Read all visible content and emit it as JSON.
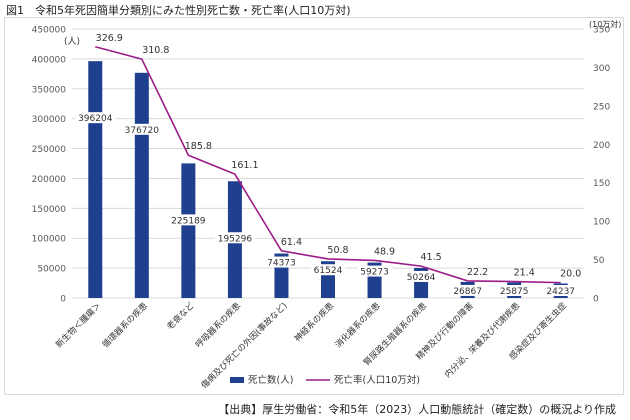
{
  "figure_title": "図1　令和5年死因簡単分類別にみた性別死亡数・死亡率(人口10万対)",
  "source": "【出典】厚生労働省：令和5年（2023）人口動態統計（確定数）の概況より作成",
  "chart_data": {
    "type": "bar",
    "categories": [
      "新生物＜腫瘍＞",
      "循環器系の疾患",
      "老衰など",
      "呼吸器系の疾患",
      "傷病及び死亡の外因(事故など)",
      "神経系の疾患",
      "消化器系の疾患",
      "腎尿路生殖器系の疾患",
      "精神及び行動の障害",
      "内分泌、栄養及び代謝疾患",
      "感染症及び寄生虫症"
    ],
    "series": [
      {
        "name": "死亡数(人)",
        "type": "bar",
        "axis": "left",
        "color": "#1f3f8f",
        "values": [
          396204,
          376720,
          225189,
          195296,
          74373,
          61524,
          59273,
          50264,
          26867,
          25875,
          24237
        ]
      },
      {
        "name": "死亡率(人口10万対)",
        "type": "line",
        "axis": "right",
        "color": "#9b1b87",
        "values": [
          326.9,
          310.8,
          185.8,
          161.1,
          61.4,
          50.8,
          48.9,
          41.5,
          22.2,
          21.4,
          20.0
        ]
      }
    ],
    "y_left": {
      "label": "(人)",
      "min": 0,
      "max": 450000,
      "ticks": [
        0,
        50000,
        100000,
        150000,
        200000,
        250000,
        300000,
        350000,
        400000,
        450000
      ]
    },
    "y_right": {
      "label": "(10万対)",
      "min": 0,
      "max": 350,
      "ticks": [
        0,
        50,
        100,
        150,
        200,
        250,
        300,
        350
      ]
    },
    "bar_labels": [
      "396204",
      "376720",
      "225189",
      "195296",
      "74373",
      "61524",
      "59273",
      "50264",
      "26867",
      "25875",
      "24237"
    ],
    "line_labels": [
      "326.9",
      "310.8",
      "185.8",
      "161.1",
      "61.4",
      "50.8",
      "48.9",
      "41.5",
      "22.2",
      "21.4",
      "20.0"
    ],
    "grid": true,
    "legend_position": "bottom"
  }
}
